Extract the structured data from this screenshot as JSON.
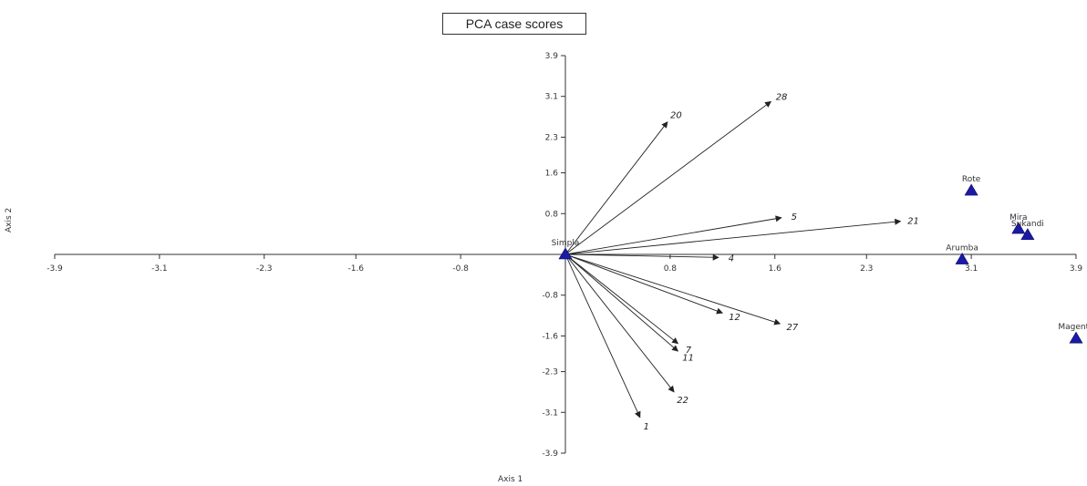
{
  "chart_data": {
    "type": "scatter",
    "title": "PCA case scores",
    "xlabel": "Axis 1",
    "ylabel": "Axis 2",
    "xlim": [
      -3.9,
      3.9
    ],
    "ylim": [
      -3.9,
      3.9
    ],
    "x_ticks": [
      "-3.9",
      "-3.1",
      "-2.3",
      "-1.6",
      "-0.8",
      "0.8",
      "1.6",
      "2.3",
      "3.1",
      "3.9"
    ],
    "y_ticks": [
      "3.9",
      "3.1",
      "2.3",
      "1.6",
      "0.8",
      "-0.8",
      "-1.6",
      "-2.3",
      "-3.1",
      "-3.9"
    ],
    "x_tick_values": [
      -3.9,
      -3.1,
      -2.3,
      -1.6,
      -0.8,
      0.8,
      1.6,
      2.3,
      3.1,
      3.9
    ],
    "y_tick_values": [
      3.9,
      3.1,
      2.3,
      1.6,
      0.8,
      -0.8,
      -1.6,
      -2.3,
      -3.1,
      -3.9
    ],
    "points": [
      {
        "label": "Simpla",
        "x": 0.0,
        "y": 0.0
      },
      {
        "label": "Rote",
        "x": 3.1,
        "y": 1.25
      },
      {
        "label": "Mira",
        "x": 3.46,
        "y": 0.5
      },
      {
        "label": "Sukandi",
        "x": 3.53,
        "y": 0.38
      },
      {
        "label": "Arumba",
        "x": 3.03,
        "y": -0.1
      },
      {
        "label": "Magenta",
        "x": 3.9,
        "y": -1.65
      }
    ],
    "vectors": [
      {
        "label": "20",
        "x": 0.78,
        "y": 2.6
      },
      {
        "label": "28",
        "x": 1.57,
        "y": 3.0
      },
      {
        "label": "5",
        "x": 1.65,
        "y": 0.72
      },
      {
        "label": "21",
        "x": 2.56,
        "y": 0.65
      },
      {
        "label": "4",
        "x": 1.17,
        "y": -0.06
      },
      {
        "label": "12",
        "x": 1.2,
        "y": -1.15
      },
      {
        "label": "27",
        "x": 1.64,
        "y": -1.36
      },
      {
        "label": "7",
        "x": 0.86,
        "y": -1.75
      },
      {
        "label": "11",
        "x": 0.86,
        "y": -1.9
      },
      {
        "label": "22",
        "x": 0.83,
        "y": -2.7
      },
      {
        "label": "1",
        "x": 0.57,
        "y": -3.2
      }
    ],
    "colors": {
      "marker": "#1a1aa6",
      "vector": "#222222",
      "axis": "#333333"
    }
  }
}
